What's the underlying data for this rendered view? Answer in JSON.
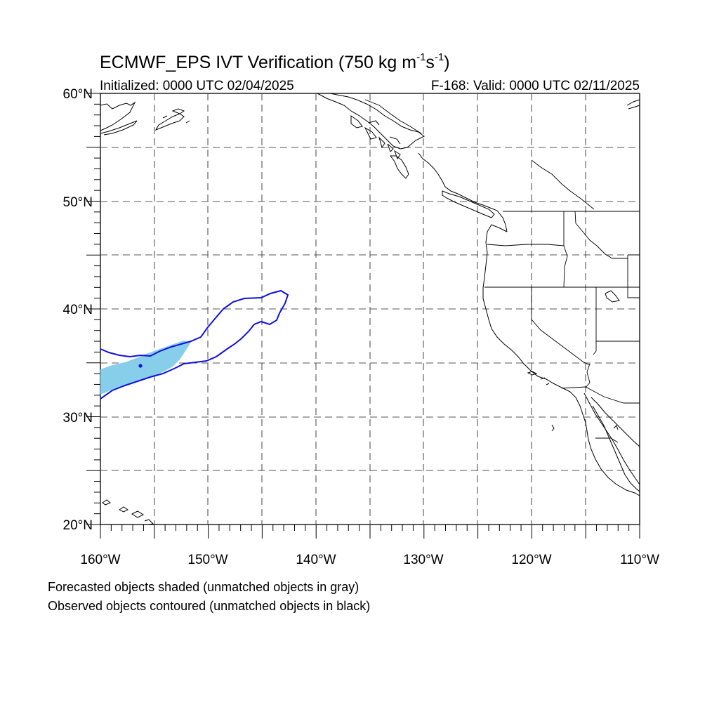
{
  "figure": {
    "title_main": "ECMWF_EPS IVT Verification (750 kg m",
    "title_exp1": "-1",
    "title_mid": "s",
    "title_exp2": "-1",
    "title_end": ")",
    "init_label": "Initialized: 0000 UTC 02/04/2025",
    "valid_label": "F-168: Valid: 0000 UTC 02/11/2025"
  },
  "axes": {
    "lat_labels": [
      "60°N",
      "50°N",
      "40°N",
      "30°N",
      "20°N"
    ],
    "lon_labels": [
      "160°W",
      "150°W",
      "140°W",
      "130°W",
      "120°W",
      "110°W"
    ],
    "lat_range": [
      20,
      60
    ],
    "lon_range": [
      -160,
      -110
    ]
  },
  "legend": {
    "forecast_note": "Forecasted objects shaded (unmatched objects in gray)",
    "observed_note": "Observed objects contoured (unmatched objects in black)"
  },
  "colors": {
    "forecast_fill": "#87ceeb",
    "observed_contour": "#1010e0",
    "coastline": "#000000",
    "grid": "#555555"
  }
}
